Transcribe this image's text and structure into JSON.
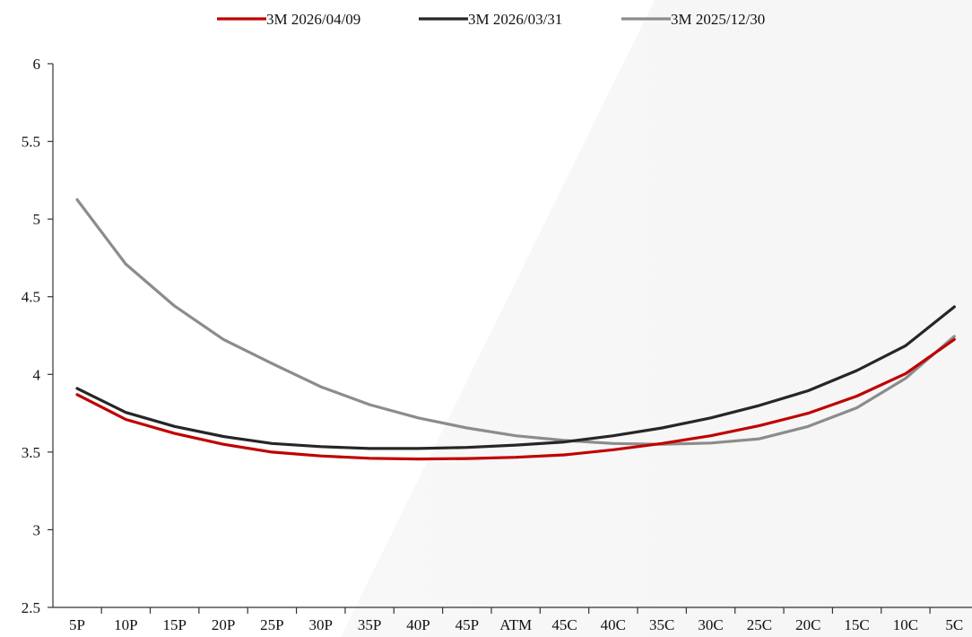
{
  "chart_data": {
    "type": "line",
    "title": "",
    "xlabel": "",
    "ylabel": "",
    "categories": [
      "5P",
      "10P",
      "15P",
      "20P",
      "25P",
      "30P",
      "35P",
      "40P",
      "45P",
      "ATM",
      "45C",
      "40C",
      "35C",
      "30C",
      "25C",
      "20C",
      "15C",
      "10C",
      "5C"
    ],
    "ylim": [
      2.5,
      6
    ],
    "yticks": [
      "2.5",
      "3",
      "3.5",
      "4",
      "4.5",
      "5",
      "5.5",
      "6"
    ],
    "grid": false,
    "legend_position": "top-center",
    "series": [
      {
        "name": "3M 2026/04/09",
        "color": "#c00000",
        "values": [
          3.87,
          3.71,
          3.62,
          3.55,
          3.5,
          3.475,
          3.46,
          3.455,
          3.458,
          3.466,
          3.482,
          3.515,
          3.555,
          3.605,
          3.67,
          3.75,
          3.86,
          4.005,
          4.225
        ]
      },
      {
        "name": "3M 2026/03/31",
        "color": "#262626",
        "values": [
          3.91,
          3.755,
          3.665,
          3.6,
          3.555,
          3.535,
          3.523,
          3.523,
          3.53,
          3.545,
          3.565,
          3.605,
          3.655,
          3.72,
          3.8,
          3.895,
          4.025,
          4.185,
          4.435
        ]
      },
      {
        "name": "3M 2025/12/30",
        "color": "#8c8c8c",
        "values": [
          5.125,
          4.71,
          4.44,
          4.225,
          4.07,
          3.92,
          3.805,
          3.72,
          3.655,
          3.605,
          3.575,
          3.555,
          3.55,
          3.558,
          3.585,
          3.665,
          3.785,
          3.975,
          4.245
        ]
      }
    ]
  }
}
